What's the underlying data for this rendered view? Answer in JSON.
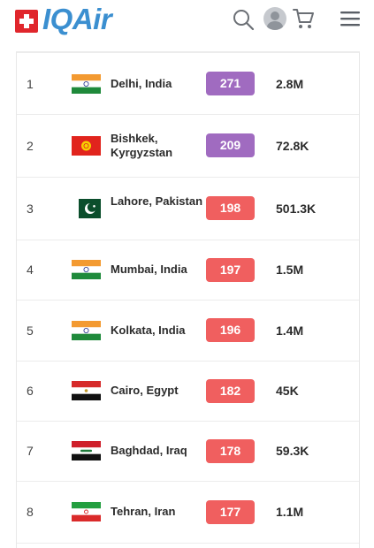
{
  "header": {
    "logo_text": "IQAir",
    "icons": [
      "swiss-flag-icon",
      "search-icon",
      "avatar",
      "cart-icon",
      "menu-icon"
    ]
  },
  "colors": {
    "brand_blue": "#3b8fd0",
    "very_unhealthy": "#a06bc0",
    "unhealthy": "#f05f5f"
  },
  "rows": [
    {
      "rank": "1",
      "city": "Delhi, India",
      "aqi": "271",
      "followers": "2.8M",
      "flag": "india",
      "level_color": "#a06bc0"
    },
    {
      "rank": "2",
      "city": "Bishkek, Kyrgyzstan",
      "aqi": "209",
      "followers": "72.8K",
      "flag": "kyrgyzstan",
      "level_color": "#a06bc0"
    },
    {
      "rank": "3",
      "city": "Lahore, Pakistan",
      "aqi": "198",
      "followers": "501.3K",
      "flag": "pakistan",
      "level_color": "#f05f5f"
    },
    {
      "rank": "4",
      "city": "Mumbai, India",
      "aqi": "197",
      "followers": "1.5M",
      "flag": "india",
      "level_color": "#f05f5f"
    },
    {
      "rank": "5",
      "city": "Kolkata, India",
      "aqi": "196",
      "followers": "1.4M",
      "flag": "india",
      "level_color": "#f05f5f"
    },
    {
      "rank": "6",
      "city": "Cairo, Egypt",
      "aqi": "182",
      "followers": "45K",
      "flag": "egypt",
      "level_color": "#f05f5f"
    },
    {
      "rank": "7",
      "city": "Baghdad, Iraq",
      "aqi": "178",
      "followers": "59.3K",
      "flag": "iraq",
      "level_color": "#f05f5f"
    },
    {
      "rank": "8",
      "city": "Tehran, Iran",
      "aqi": "177",
      "followers": "1.1M",
      "flag": "iran",
      "level_color": "#f05f5f"
    }
  ]
}
